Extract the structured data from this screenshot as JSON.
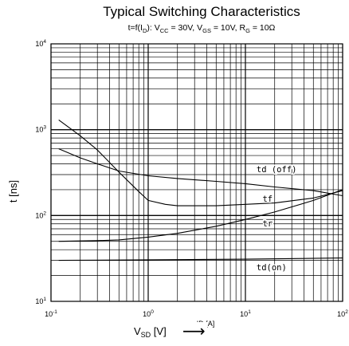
{
  "chart_data": {
    "type": "line",
    "title": "Typical Switching Characteristics",
    "subtitle": {
      "prefix": "t=f(I",
      "prefix_sub": "D",
      "mid1": "): V",
      "vcc_sub": "CC",
      "mid2": " = 30V, V",
      "vgs_sub": "GS",
      "mid3": " = 10V, R",
      "rg_sub": "G",
      "suffix": " = 10Ω"
    },
    "ylabel": "t [ns]",
    "xlabel": {
      "main": "V",
      "sub": "SD",
      "unit": " [V]",
      "arrow": "⟶",
      "overlap_fragment": "ID [A]"
    },
    "x_scale": "log",
    "y_scale": "log",
    "xlim": [
      0.1,
      100
    ],
    "ylim": [
      10,
      10000
    ],
    "x_ticks": [
      {
        "value": 0.1,
        "base": "10",
        "exp": "-1"
      },
      {
        "value": 1,
        "base": "10",
        "exp": "0"
      },
      {
        "value": 10,
        "base": "10",
        "exp": "1"
      },
      {
        "value": 100,
        "base": "10",
        "exp": "2"
      }
    ],
    "y_ticks": [
      {
        "value": 10,
        "base": "10",
        "exp": "1"
      },
      {
        "value": 100,
        "base": "10",
        "exp": "2"
      },
      {
        "value": 1000,
        "base": "10",
        "exp": "3"
      },
      {
        "value": 10000,
        "base": "10",
        "exp": "4"
      }
    ],
    "grid": true,
    "series": [
      {
        "name": "td (off)",
        "label_x": 13,
        "label_y": 320,
        "x": [
          0.12,
          0.2,
          0.3,
          0.5,
          1,
          2,
          5,
          10,
          20,
          50,
          100
        ],
        "y": [
          600,
          470,
          400,
          330,
          290,
          270,
          250,
          235,
          215,
          195,
          170
        ]
      },
      {
        "name": "tf",
        "label_x": 15,
        "label_y": 145,
        "x": [
          0.12,
          0.2,
          0.3,
          0.5,
          0.8,
          1,
          1.5,
          2,
          3,
          5,
          10,
          20,
          50,
          100
        ],
        "y": [
          1300,
          850,
          580,
          320,
          190,
          150,
          135,
          130,
          130,
          130,
          135,
          140,
          160,
          195
        ]
      },
      {
        "name": "tr",
        "label_x": 15,
        "label_y": 75,
        "x": [
          0.12,
          0.3,
          0.5,
          1,
          2,
          5,
          10,
          20,
          50,
          100
        ],
        "y": [
          50,
          51,
          52,
          56,
          62,
          75,
          90,
          110,
          150,
          200
        ]
      },
      {
        "name": "td(on)",
        "label_x": 13,
        "label_y": 23,
        "x": [
          0.12,
          1,
          10,
          100
        ],
        "y": [
          30,
          30.5,
          31,
          32
        ]
      }
    ]
  }
}
